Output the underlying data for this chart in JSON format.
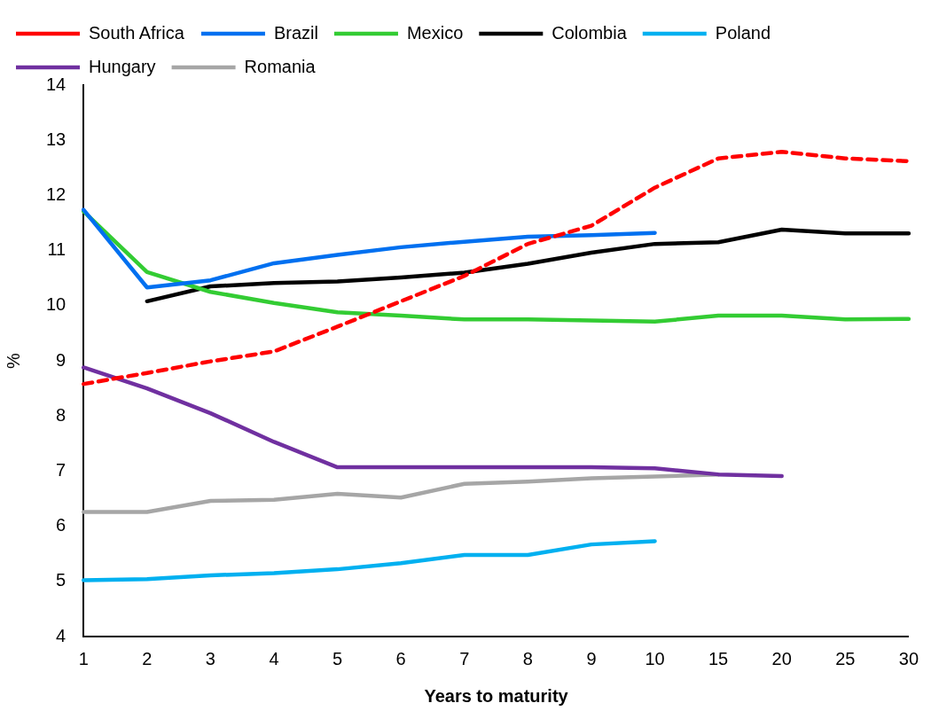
{
  "chart_data": {
    "type": "line",
    "xlabel": "Years to maturity",
    "ylabel": "%",
    "categories": [
      "1",
      "2",
      "3",
      "4",
      "5",
      "6",
      "7",
      "8",
      "9",
      "10",
      "15",
      "20",
      "25",
      "30"
    ],
    "ylim": [
      4,
      14
    ],
    "yticks": [
      4,
      5,
      6,
      7,
      8,
      9,
      10,
      11,
      12,
      13,
      14
    ],
    "grid": false,
    "legend": "top left",
    "marker": "none",
    "series": [
      {
        "name": "South Africa",
        "color": "#ff0000",
        "line_style": "dashed",
        "values": [
          8.58,
          8.78,
          8.99,
          9.17,
          9.62,
          10.08,
          10.54,
          11.12,
          11.45,
          12.14,
          12.67,
          12.79,
          12.67,
          12.62
        ]
      },
      {
        "name": "Brazil",
        "color": "#0070f0",
        "values": [
          11.74,
          10.33,
          10.46,
          10.77,
          10.92,
          11.06,
          11.16,
          11.25,
          11.28,
          11.32,
          null,
          null,
          null,
          null
        ]
      },
      {
        "name": "Mexico",
        "color": "#33cc33",
        "values": [
          11.71,
          10.61,
          10.25,
          10.05,
          9.88,
          9.82,
          9.75,
          9.75,
          9.73,
          9.71,
          9.82,
          9.82,
          9.75,
          9.76
        ]
      },
      {
        "name": "Colombia",
        "color": "#000000",
        "values": [
          null,
          10.08,
          10.35,
          10.41,
          10.44,
          10.51,
          10.6,
          10.76,
          10.96,
          11.12,
          11.15,
          11.38,
          11.31,
          11.31
        ]
      },
      {
        "name": "Poland",
        "color": "#00b0f0",
        "values": [
          5.02,
          5.04,
          5.11,
          5.15,
          5.22,
          5.33,
          5.48,
          5.48,
          5.67,
          5.73,
          null,
          null,
          null,
          null
        ]
      },
      {
        "name": "Hungary",
        "color": "#7030a0",
        "values": [
          8.88,
          8.5,
          8.05,
          7.53,
          7.07,
          7.07,
          7.07,
          7.07,
          7.07,
          7.05,
          6.94,
          6.91,
          null,
          null
        ]
      },
      {
        "name": "Romania",
        "color": "#a6a6a6",
        "values": [
          6.26,
          6.26,
          6.46,
          6.48,
          6.59,
          6.52,
          6.77,
          6.81,
          6.87,
          6.9,
          6.94,
          null,
          null,
          null
        ]
      }
    ]
  }
}
